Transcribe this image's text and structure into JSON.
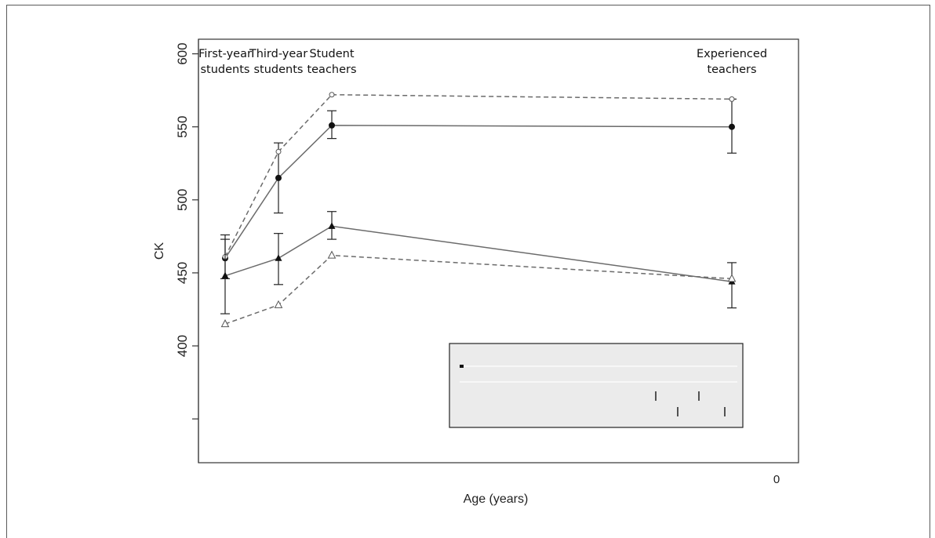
{
  "chart_data": {
    "type": "line",
    "xlabel": "Age (years)",
    "ylabel": "CK",
    "ylim": [
      320,
      610
    ],
    "y_ticks": [
      400,
      450,
      500,
      550,
      600
    ],
    "x_tick_labels": [
      "0"
    ],
    "categories": [
      "First-year students",
      "Third-year students",
      "Student teachers",
      "Experienced teachers"
    ],
    "category_x": [
      20,
      24,
      28,
      58
    ],
    "xlim": [
      18,
      63
    ],
    "group_labels": [
      {
        "lines": [
          "First-year",
          "students"
        ]
      },
      {
        "lines": [
          "Third-year",
          "students"
        ]
      },
      {
        "lines": [
          "Student",
          "teachers"
        ]
      },
      {
        "lines": [
          "Experienced",
          "teachers"
        ]
      }
    ],
    "series": [
      {
        "style": "solid",
        "marker": "filled-circle",
        "values": [
          460,
          515,
          551,
          550
        ],
        "err_low": [
          446,
          491,
          542,
          532
        ],
        "err_high": [
          476,
          539,
          561,
          569
        ]
      },
      {
        "style": "dashed",
        "marker": "open-circle",
        "values": [
          461,
          533,
          572,
          569
        ]
      },
      {
        "style": "solid",
        "marker": "filled-triangle",
        "values": [
          448,
          460,
          482,
          444
        ],
        "err_low": [
          422,
          442,
          473,
          426
        ],
        "err_high": [
          473,
          477,
          492,
          457
        ]
      },
      {
        "style": "dashed",
        "marker": "open-triangle",
        "values": [
          415,
          428,
          462,
          446
        ]
      }
    ],
    "legend": {
      "position": "bottom-right",
      "entries": []
    },
    "grid": false
  },
  "colors": {
    "series_line": "#6b6b6b",
    "marker": "#111111",
    "legend_bg": "#ebebeb",
    "axis": "#333333"
  }
}
